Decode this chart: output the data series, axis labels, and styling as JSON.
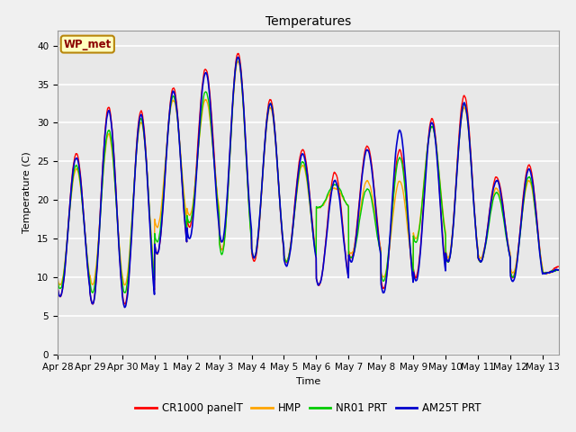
{
  "title": "Temperatures",
  "xlabel": "Time",
  "ylabel": "Temperature (C)",
  "ylim": [
    0,
    42
  ],
  "yticks": [
    0,
    5,
    10,
    15,
    20,
    25,
    30,
    35,
    40
  ],
  "fig_bg_color": "#f0f0f0",
  "plot_bg_color": "#e8e8e8",
  "grid_color": "#ffffff",
  "annotation_text": "WP_met",
  "annotation_fgcolor": "#8b0000",
  "annotation_bgcolor": "#ffffc0",
  "annotation_bordercolor": "#b8860b",
  "series_colors": [
    "#ff0000",
    "#ffa500",
    "#00cc00",
    "#0000cd"
  ],
  "series_labels": [
    "CR1000 panelT",
    "HMP",
    "NR01 PRT",
    "AM25T PRT"
  ],
  "series_lw": [
    1.0,
    1.0,
    1.0,
    1.2
  ],
  "xtick_labels": [
    "Apr 28",
    "Apr 29",
    "Apr 30",
    "May 1",
    "May 2",
    "May 3",
    "May 4",
    "May 5",
    "May 6",
    "May 7",
    "May 8",
    "May 9",
    "May 10",
    "May 11",
    "May 12",
    "May 13"
  ],
  "day_peaks_red": [
    26.0,
    32.0,
    31.5,
    34.5,
    37.0,
    39.0,
    33.0,
    26.5,
    23.5,
    27.0,
    26.5,
    30.5,
    33.5,
    23.0,
    24.5,
    11.5
  ],
  "day_mins_red": [
    7.5,
    6.5,
    6.5,
    13.0,
    16.5,
    13.5,
    12.0,
    12.0,
    9.0,
    12.5,
    8.5,
    10.0,
    12.0,
    12.0,
    10.0,
    10.5
  ],
  "day_peaks_orange": [
    24.0,
    28.5,
    30.0,
    33.0,
    33.0,
    38.0,
    32.0,
    24.5,
    21.5,
    22.5,
    22.5,
    29.5,
    32.0,
    21.5,
    22.5,
    11.0
  ],
  "day_mins_orange": [
    9.0,
    9.0,
    9.0,
    16.5,
    18.0,
    13.5,
    12.5,
    12.0,
    19.0,
    13.0,
    10.0,
    15.0,
    12.5,
    12.5,
    10.5,
    10.5
  ],
  "day_peaks_green": [
    24.5,
    29.0,
    30.5,
    33.5,
    34.0,
    38.5,
    32.5,
    25.0,
    22.0,
    21.5,
    25.5,
    29.5,
    32.5,
    21.0,
    23.0,
    11.0
  ],
  "day_mins_green": [
    8.5,
    8.0,
    8.0,
    14.5,
    17.0,
    13.0,
    12.5,
    12.0,
    19.0,
    12.5,
    9.5,
    14.5,
    12.0,
    12.0,
    10.0,
    10.5
  ],
  "day_peaks_blue": [
    25.5,
    31.5,
    31.0,
    34.0,
    36.5,
    38.5,
    32.5,
    26.0,
    22.5,
    26.5,
    29.0,
    30.0,
    32.5,
    22.5,
    24.0,
    11.0
  ],
  "day_mins_blue": [
    7.5,
    6.5,
    6.0,
    13.0,
    15.0,
    14.5,
    12.5,
    11.5,
    9.0,
    12.0,
    8.0,
    9.5,
    12.0,
    12.0,
    9.5,
    10.5
  ],
  "num_days": 15.5,
  "points_per_day": 144
}
